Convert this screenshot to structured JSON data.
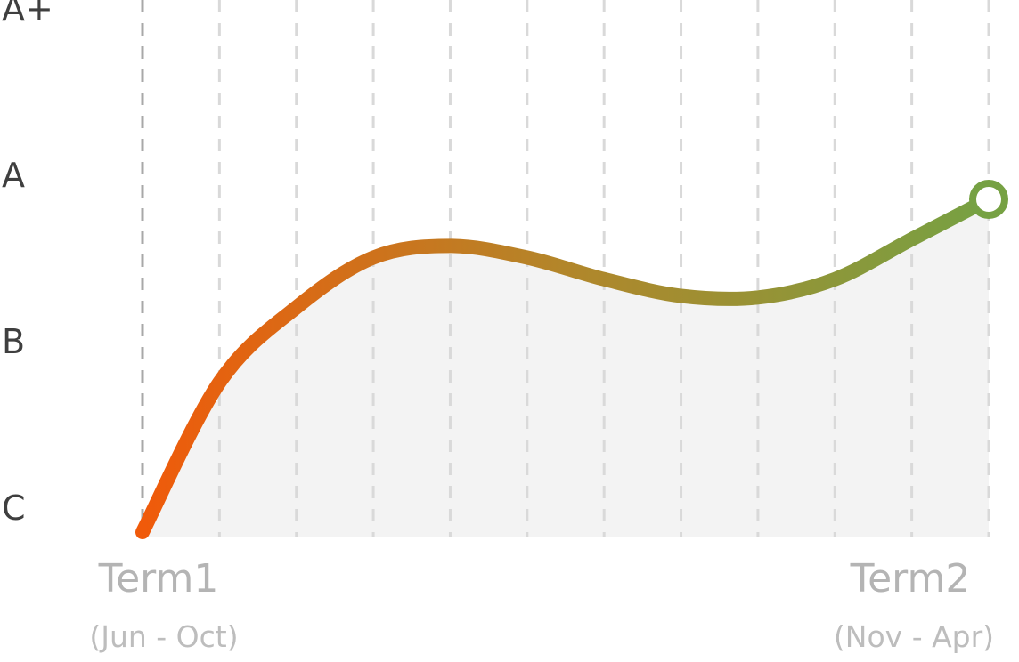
{
  "chart_data": {
    "type": "line",
    "title": "",
    "xlabel": "",
    "ylabel": "",
    "y_ticks": [
      "C",
      "B",
      "A",
      "A+"
    ],
    "x_ticks": [
      {
        "label": "Term1",
        "sublabel": "(Jun - Oct)"
      },
      {
        "label": "Term2",
        "sublabel": "(Nov - Apr)"
      }
    ],
    "x": [
      0,
      1,
      2,
      3,
      4,
      5,
      6,
      7,
      8,
      9,
      10,
      11
    ],
    "values": [
      0,
      0.9,
      1.35,
      1.65,
      1.72,
      1.65,
      1.52,
      1.42,
      1.41,
      1.52,
      1.76,
      2.0
    ],
    "ylim": [
      0,
      3
    ],
    "grid": "vertical dashed",
    "area_fill": true,
    "end_marker": "hollow circle",
    "colors": {
      "line_start": "#f05a0a",
      "line_mid": "#b2862a",
      "line_end": "#76a143",
      "area": "#f3f3f3",
      "grid": "#d9d9d9",
      "axis": "#a8a8a8"
    }
  }
}
